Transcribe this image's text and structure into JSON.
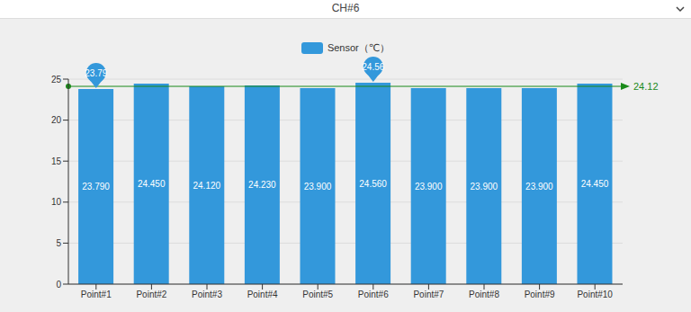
{
  "chart_data": {
    "type": "bar",
    "title": "CH#6",
    "categories": [
      "Point#1",
      "Point#2",
      "Point#3",
      "Point#4",
      "Point#5",
      "Point#6",
      "Point#7",
      "Point#8",
      "Point#9",
      "Point#10"
    ],
    "series": [
      {
        "name": "Sensor（℃）",
        "color": "#3398db",
        "values": [
          23.79,
          24.45,
          24.12,
          24.23,
          23.9,
          24.56,
          23.9,
          23.9,
          23.9,
          24.45
        ],
        "value_labels": [
          "23.790",
          "24.450",
          "24.120",
          "24.230",
          "23.900",
          "24.560",
          "23.900",
          "23.900",
          "23.900",
          "24.450"
        ]
      }
    ],
    "ylim": [
      0,
      25
    ],
    "yticks": [
      0,
      5,
      10,
      15,
      20,
      25
    ],
    "grid": true,
    "data_labels": true,
    "legend": "top",
    "annotations": [
      {
        "category": "Point#1",
        "value": 23.79
      },
      {
        "category": "Point#6",
        "value": 24.56
      }
    ],
    "average_line": {
      "value": 24.12,
      "color": "#1a8a1a"
    }
  }
}
